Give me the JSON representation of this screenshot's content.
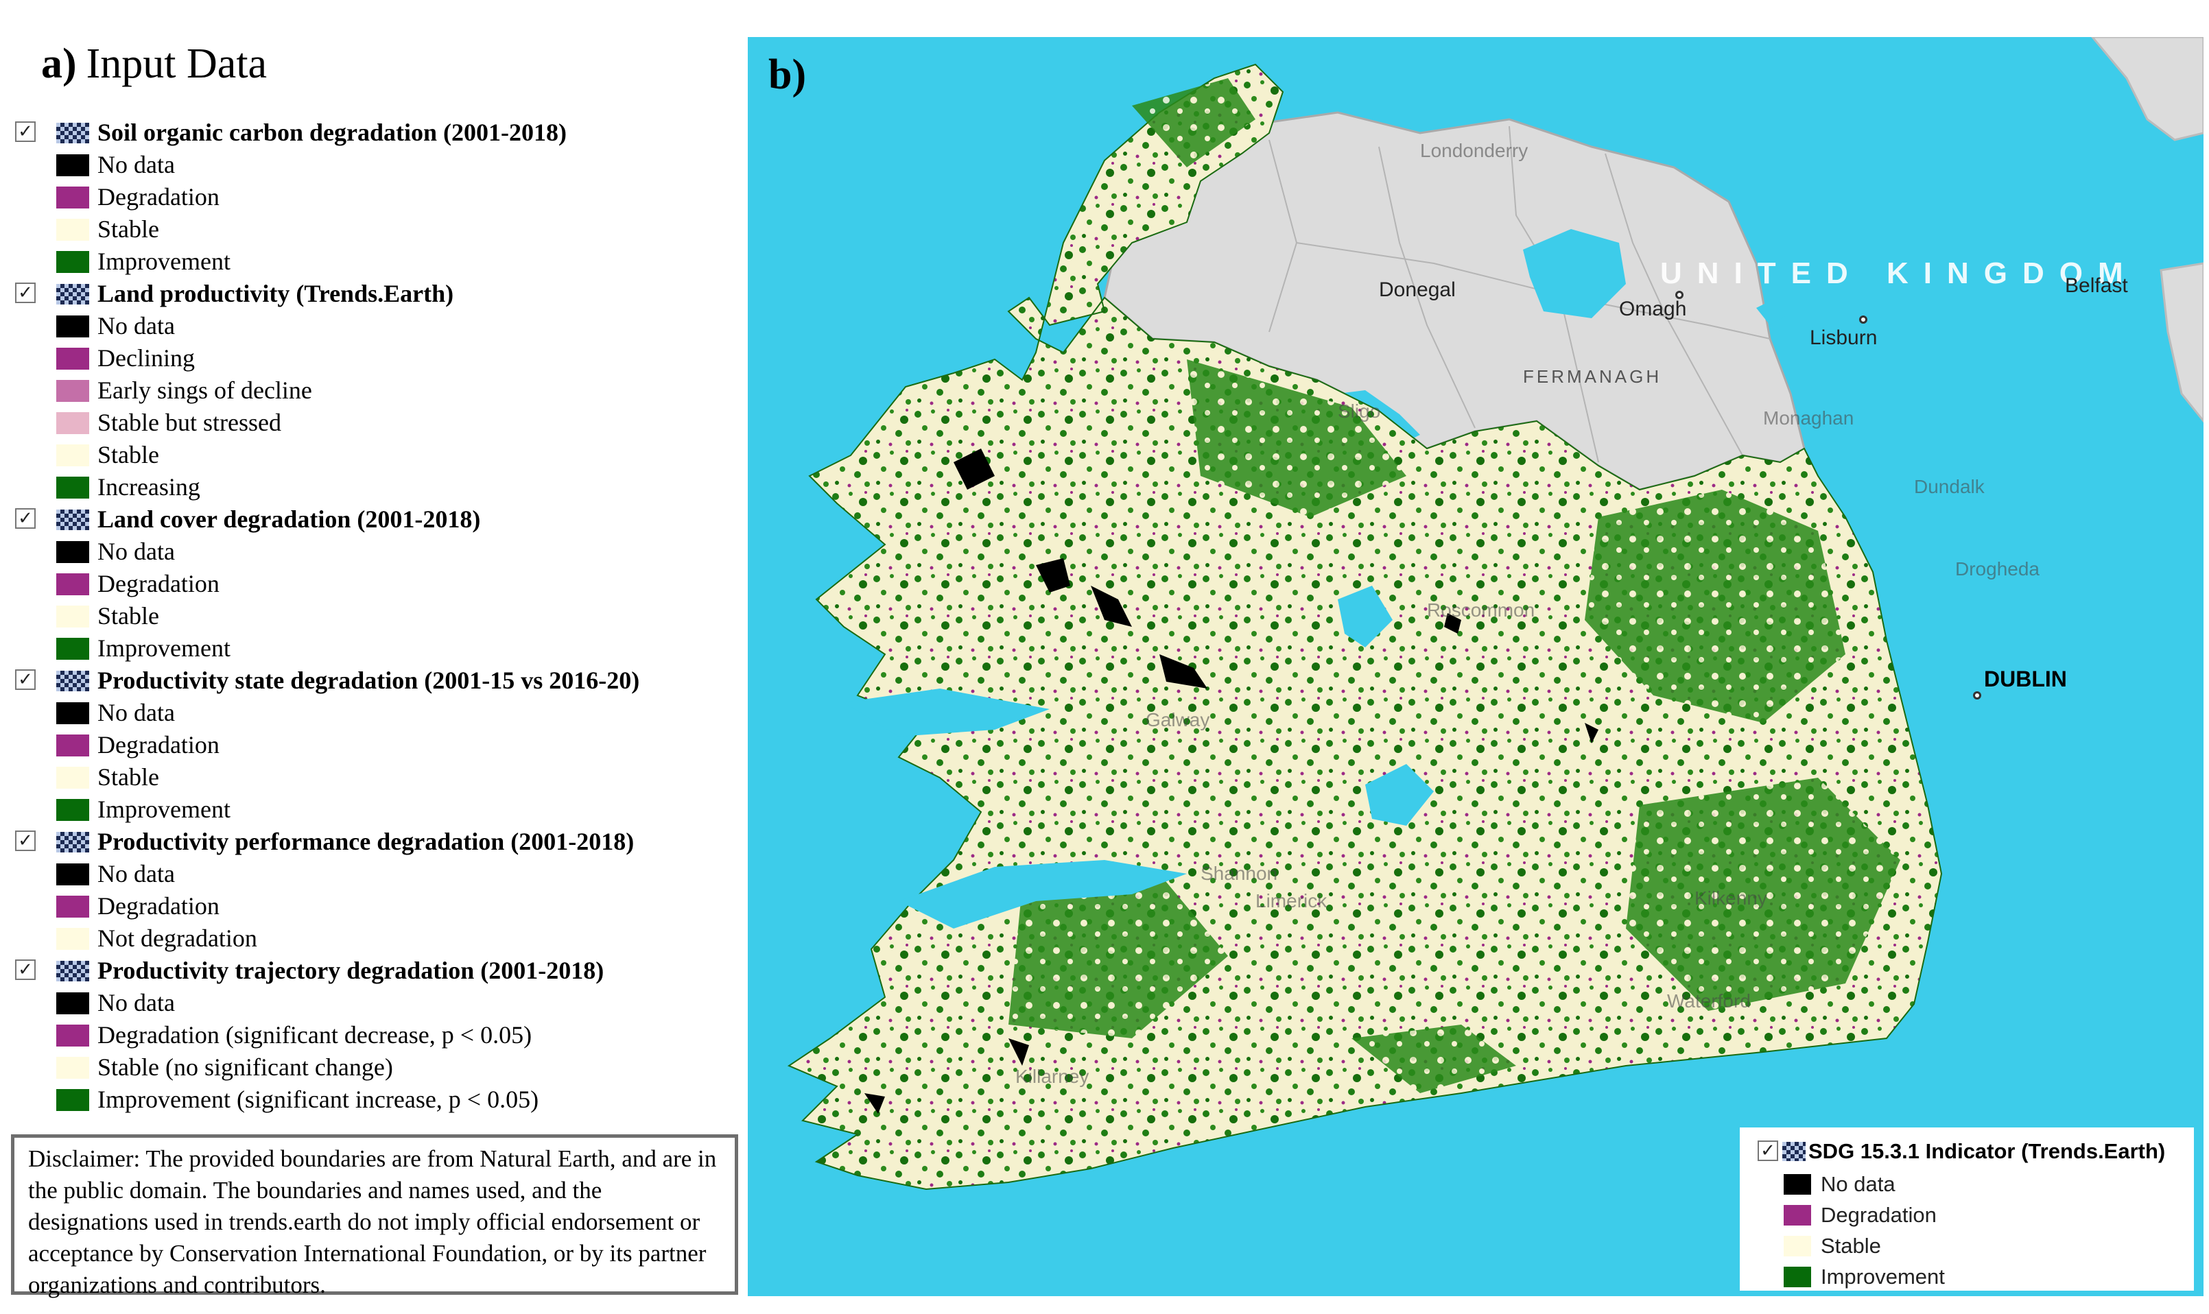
{
  "colors": {
    "no_data": "#000000",
    "degradation": "#9c2a85",
    "early_decline": "#c46fa8",
    "stable_stressed": "#e8b5c8",
    "stable": "#fffbe0",
    "improvement": "#076b09",
    "sea": "#3dccea",
    "uk_land": "#dcdcdc"
  },
  "panel_a": {
    "label": "a)",
    "title": "Input Data",
    "layers": [
      {
        "title": "Soil organic carbon degradation (2001-2018)",
        "entries": [
          {
            "label": "No data",
            "color": "#000000"
          },
          {
            "label": "Degradation",
            "color": "#9c2a85"
          },
          {
            "label": "Stable",
            "color": "#fffbe0"
          },
          {
            "label": "Improvement",
            "color": "#076b09"
          }
        ]
      },
      {
        "title": "Land productivity  (Trends.Earth)",
        "entries": [
          {
            "label": "No data",
            "color": "#000000"
          },
          {
            "label": "Declining",
            "color": "#9c2a85"
          },
          {
            "label": "Early sings of decline",
            "color": "#c46fa8"
          },
          {
            "label": "Stable but stressed",
            "color": "#e8b5c8"
          },
          {
            "label": "Stable",
            "color": "#fffbe0"
          },
          {
            "label": "Increasing",
            "color": "#076b09"
          }
        ]
      },
      {
        "title": "Land cover degradation (2001-2018)",
        "entries": [
          {
            "label": "No data",
            "color": "#000000"
          },
          {
            "label": "Degradation",
            "color": "#9c2a85"
          },
          {
            "label": "Stable",
            "color": "#fffbe0"
          },
          {
            "label": "Improvement",
            "color": "#076b09"
          }
        ]
      },
      {
        "title": "Productivity state degradation (2001-15 vs 2016-20)",
        "entries": [
          {
            "label": "No data",
            "color": "#000000"
          },
          {
            "label": "Degradation",
            "color": "#9c2a85"
          },
          {
            "label": "Stable",
            "color": "#fffbe0"
          },
          {
            "label": "Improvement",
            "color": "#076b09"
          }
        ]
      },
      {
        "title": "Productivity performance degradation (2001-2018)",
        "entries": [
          {
            "label": "No data",
            "color": "#000000"
          },
          {
            "label": "Degradation",
            "color": "#9c2a85"
          },
          {
            "label": "Not degradation",
            "color": "#fffbe0"
          }
        ]
      },
      {
        "title": "Productivity trajectory degradation (2001-2018)",
        "entries": [
          {
            "label": "No data",
            "color": "#000000"
          },
          {
            "label": "Degradation (significant decrease, p < 0.05)",
            "color": "#9c2a85"
          },
          {
            "label": "Stable (no significant change)",
            "color": "#fffbe0"
          },
          {
            "label": "Improvement (significant increase, p < 0.05)",
            "color": "#076b09"
          }
        ]
      }
    ],
    "disclaimer": "Disclaimer: The provided boundaries are from Natural Earth, and are in the public domain. The boundaries and names used, and the designations used in trends.earth do not imply official endorsement or acceptance by Conservation International Foundation, or by its partner organizations and contributors."
  },
  "panel_b": {
    "label": "b)",
    "places": {
      "londonderry": "Londonderry",
      "donegal": "Donegal",
      "omagh": "Omagh",
      "lisburn": "Lisburn",
      "belfast": "Belfast",
      "fermanagh": "FERMANAGH",
      "united_kingdom": "UNITED KINGDOM",
      "sligo": "Sligo",
      "monaghan": "Monaghan",
      "dundalk": "Dundalk",
      "drogheda": "Drogheda",
      "dublin": "DUBLIN",
      "galway": "Galway",
      "roscommon": "Roscommon",
      "shannon": "Shannon",
      "limerick": "Limerick",
      "kilkenny": "Kilkenny",
      "waterford": "Waterford",
      "killarney": "Killarney"
    },
    "legend": {
      "title": "SDG 15.3.1 Indicator (Trends.Earth)",
      "entries": [
        {
          "label": "No data",
          "color": "#000000"
        },
        {
          "label": "Degradation",
          "color": "#9c2a85"
        },
        {
          "label": "Stable",
          "color": "#fffbe0"
        },
        {
          "label": "Improvement",
          "color": "#076b09"
        }
      ]
    }
  }
}
